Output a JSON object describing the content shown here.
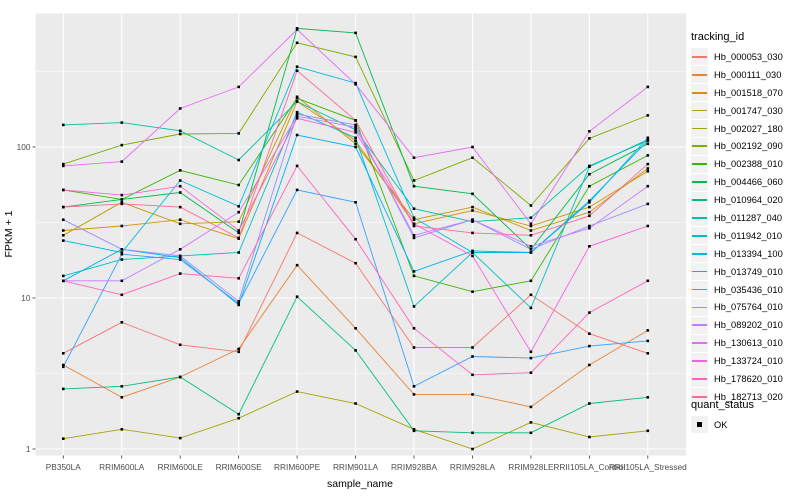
{
  "axes": {
    "x_title": "sample_name",
    "y_title": "FPKM + 1",
    "y_tick_labels": [
      "1",
      "10",
      "100"
    ],
    "y_tick_values": [
      1,
      10,
      100
    ]
  },
  "panel": {
    "background": "#EBEBEB",
    "gridline_color": "#FFFFFF",
    "tick_color": "#333333",
    "tick_label_color": "#4D4D4D"
  },
  "legend": {
    "tracking_title": "tracking_id",
    "quant_title": "quant_status",
    "quant_value": "OK",
    "key_fill": "#F2F2F2",
    "marker_color": "#000000"
  },
  "chart_data": {
    "type": "line",
    "xlabel": "sample_name",
    "ylabel": "FPKM + 1",
    "y_scale": "log10",
    "ylim": [
      1,
      735
    ],
    "grid": "major and minor (half-decade), white on gray panel",
    "legend_position": "right",
    "marker": "small black square (quant_status OK) at every point",
    "categories": [
      "PB350LA",
      "RRIM600LA",
      "RRIM600LE",
      "RRIM600SE",
      "RRIM600PE",
      "RRIM901LA",
      "RRIM928BA",
      "RRIM928LA",
      "RRIM928LE",
      "RRII105LA_Control",
      "RRII105LA_Stressed"
    ],
    "series": [
      {
        "name": "Hb_000053_030",
        "color": "#F8766D",
        "values": [
          4.3,
          6.9,
          4.9,
          4.4,
          27,
          17,
          4.7,
          4.7,
          10.5,
          5.8,
          4.3
        ]
      },
      {
        "name": "Hb_000111_030",
        "color": "#EA8331",
        "values": [
          3.6,
          2.2,
          3.0,
          4.6,
          16.5,
          6.3,
          2.3,
          2.3,
          1.9,
          3.6,
          6.1
        ]
      },
      {
        "name": "Hb_001518_070",
        "color": "#D89000",
        "values": [
          28,
          30,
          33,
          24.7,
          200,
          110,
          31,
          38,
          30,
          40,
          69
        ]
      },
      {
        "name": "Hb_001747_030",
        "color": "#C09B00",
        "values": [
          26,
          43,
          31,
          32,
          215,
          105,
          33,
          40,
          28,
          37,
          72
        ]
      },
      {
        "name": "Hb_002027_180",
        "color": "#A3A500",
        "values": [
          1.17,
          1.35,
          1.18,
          1.6,
          2.4,
          2.0,
          1.35,
          1.0,
          1.5,
          1.2,
          1.32
        ]
      },
      {
        "name": "Hb_002192_090",
        "color": "#7CAE00",
        "values": [
          77,
          103,
          122,
          123,
          490,
          395,
          60,
          85,
          41,
          114,
          162
        ]
      },
      {
        "name": "Hb_002388_010",
        "color": "#39B600",
        "values": [
          52,
          45,
          70,
          56,
          210,
          150,
          14,
          11,
          13,
          55,
          88
        ]
      },
      {
        "name": "Hb_004466_060",
        "color": "#00BB4E",
        "values": [
          40,
          45,
          50,
          27,
          610,
          570,
          55,
          49,
          21,
          66,
          105
        ]
      },
      {
        "name": "Hb_010964_020",
        "color": "#00BF7D",
        "values": [
          2.5,
          2.6,
          3.0,
          1.7,
          10.2,
          4.5,
          1.32,
          1.28,
          1.28,
          2.0,
          2.2
        ]
      },
      {
        "name": "Hb_011287_040",
        "color": "#00C1A3",
        "values": [
          140,
          145,
          128,
          82,
          200,
          130,
          39,
          32,
          34,
          75,
          110
        ]
      },
      {
        "name": "Hb_011942_010",
        "color": "#00BFC4",
        "values": [
          14,
          18,
          19,
          20,
          170,
          115,
          8.8,
          20,
          8.6,
          74,
          112
        ]
      },
      {
        "name": "Hb_013394_100",
        "color": "#00BAE0",
        "values": [
          24,
          20,
          60,
          40.5,
          340,
          265,
          34,
          20,
          20,
          43,
          115
        ]
      },
      {
        "name": "Hb_013749_010",
        "color": "#00B0F6",
        "values": [
          13,
          21,
          18.5,
          9.0,
          120,
          100,
          15,
          20.5,
          20,
          44,
          110
        ]
      },
      {
        "name": "Hb_035436_010",
        "color": "#35A2FF",
        "values": [
          3.5,
          19.5,
          18,
          9.2,
          52,
          43,
          2.6,
          4.1,
          4.0,
          4.8,
          5.2
        ]
      },
      {
        "name": "Hb_075764_010",
        "color": "#9590FF",
        "values": [
          33,
          21,
          19,
          9.5,
          165,
          140,
          25,
          33,
          21,
          30,
          42
        ]
      },
      {
        "name": "Hb_089202_010",
        "color": "#C77CFF",
        "values": [
          13,
          13,
          21,
          37,
          160,
          135,
          26,
          33,
          22,
          29,
          55
        ]
      },
      {
        "name": "Hb_130613_010",
        "color": "#E76BF3",
        "values": [
          75,
          80,
          180,
          250,
          600,
          260,
          85,
          100,
          31,
          127,
          250
        ]
      },
      {
        "name": "Hb_133724_010",
        "color": "#FA62DB",
        "values": [
          52,
          48,
          55,
          28,
          155,
          125,
          31,
          19,
          4.4,
          22,
          30
        ]
      },
      {
        "name": "Hb_178620_010",
        "color": "#FF62BC",
        "values": [
          13,
          10.5,
          14.5,
          13.5,
          75,
          24.5,
          6.3,
          3.1,
          3.2,
          8.0,
          13
        ]
      },
      {
        "name": "Hb_182713_020",
        "color": "#FF6A98",
        "values": [
          40,
          42,
          40,
          25,
          320,
          150,
          30,
          27,
          26,
          35,
          77
        ]
      }
    ]
  }
}
